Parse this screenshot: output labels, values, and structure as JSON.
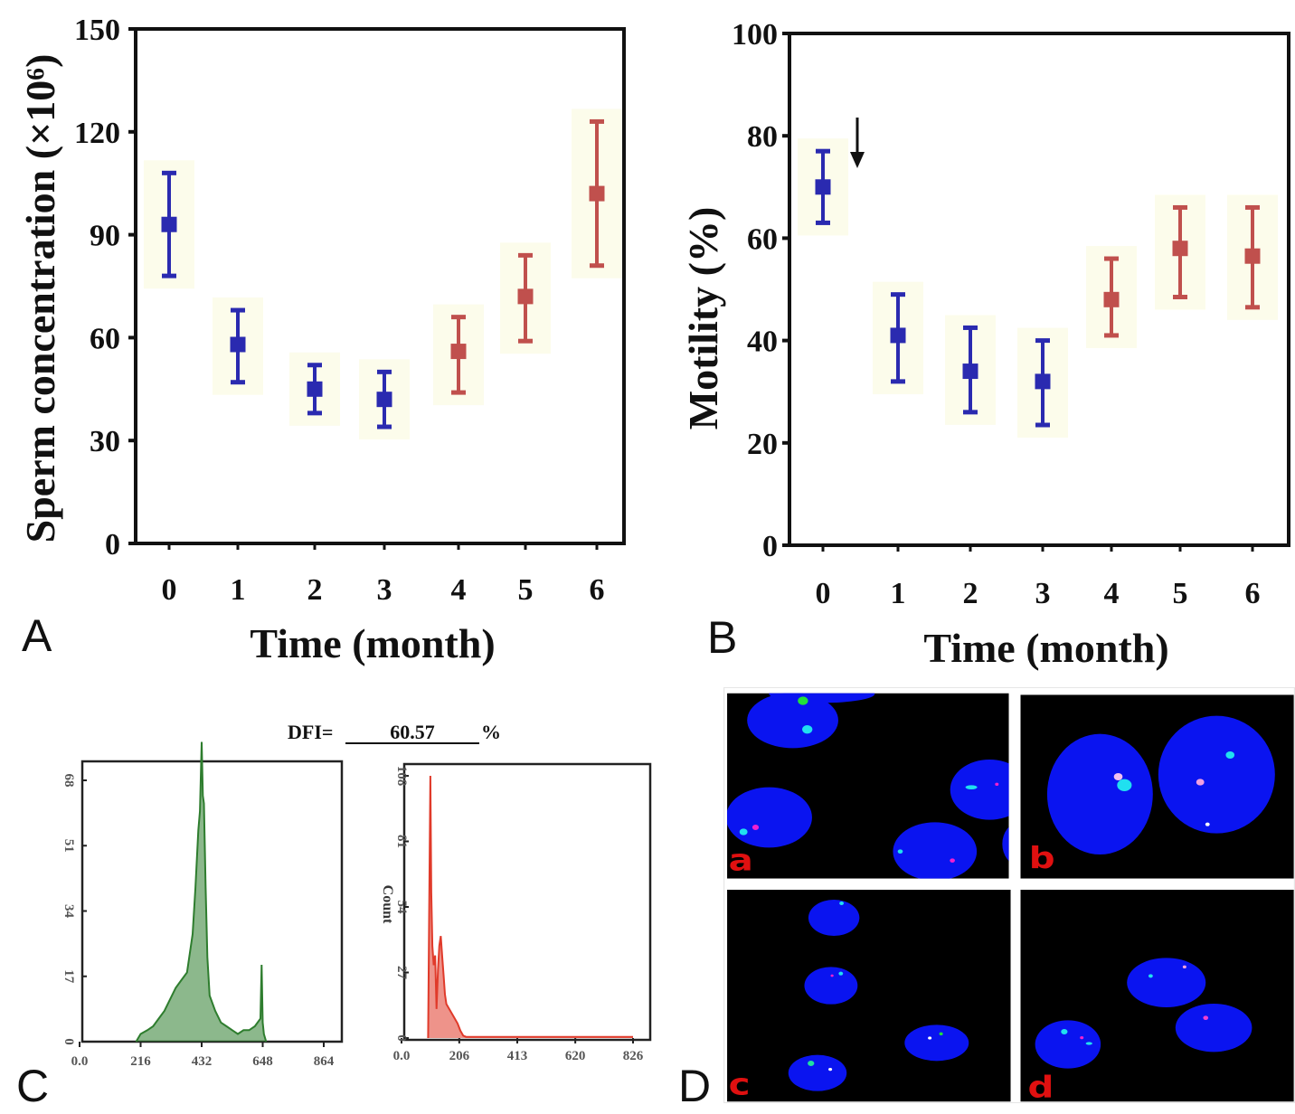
{
  "panel_labels": {
    "A": "A",
    "B": "B",
    "C": "C",
    "D": "D"
  },
  "chart_data": [
    {
      "id": "A",
      "type": "scatter",
      "error_bars": true,
      "xlabel": "Time (month)",
      "ylabel": "Sperm concentration (×10⁶)",
      "ylim": [
        0,
        150
      ],
      "yticks": [
        "0",
        "30",
        "60",
        "90",
        "120",
        "150"
      ],
      "categories": [
        "0",
        "1",
        "2",
        "3",
        "4",
        "5",
        "6"
      ],
      "values": [
        93,
        58,
        45,
        42,
        56,
        72,
        102
      ],
      "upper": [
        108,
        68,
        52,
        50,
        66,
        84,
        123
      ],
      "lower": [
        78,
        47,
        38,
        34,
        44,
        59,
        81
      ],
      "point_colors": [
        "#2a2ab0",
        "#2a2ab0",
        "#2a2ab0",
        "#2a2ab0",
        "#c0504d",
        "#c0504d",
        "#c0504d"
      ]
    },
    {
      "id": "B",
      "type": "scatter",
      "error_bars": true,
      "xlabel": "Time (month)",
      "ylabel": "Motility (%)",
      "ylim": [
        0,
        100
      ],
      "yticks": [
        "0",
        "20",
        "40",
        "60",
        "80",
        "100"
      ],
      "categories": [
        "0",
        "1",
        "2",
        "3",
        "4",
        "5",
        "6"
      ],
      "values": [
        70,
        41,
        34,
        32,
        48,
        58,
        56.5
      ],
      "upper": [
        77,
        49,
        42.5,
        40,
        56,
        66,
        66
      ],
      "lower": [
        63,
        32,
        26,
        23.5,
        41,
        48.5,
        46.5
      ],
      "point_colors": [
        "#2a2ab0",
        "#2a2ab0",
        "#2a2ab0",
        "#2a2ab0",
        "#c0504d",
        "#c0504d",
        "#c0504d"
      ],
      "annotation": "down-arrow after month 0"
    },
    {
      "id": "C-left",
      "type": "area",
      "title": "DFI=",
      "title_value": "60.57",
      "title_unit": "%",
      "xlim": [
        0,
        864
      ],
      "ylim": [
        0,
        75
      ],
      "xticks": [
        "0.0",
        "216",
        "432",
        "648",
        "864"
      ],
      "yticks": [
        "0",
        "17",
        "34",
        "51",
        "68"
      ],
      "color": "#2e7d2e",
      "x": [
        200,
        216,
        240,
        260,
        280,
        300,
        320,
        340,
        360,
        380,
        400,
        410,
        420,
        426,
        432,
        436,
        440,
        446,
        452,
        460,
        480,
        500,
        520,
        540,
        560,
        580,
        600,
        620,
        640,
        644,
        648,
        652,
        660
      ],
      "y": [
        0,
        2,
        3,
        4,
        6,
        8,
        11,
        14,
        16,
        18,
        28,
        40,
        55,
        60,
        78,
        64,
        62,
        40,
        22,
        12,
        8,
        5,
        4,
        3,
        2,
        3,
        3,
        4,
        6,
        20,
        5,
        2,
        0
      ]
    },
    {
      "id": "C-right",
      "type": "area",
      "ylabel": "Count",
      "xlim": [
        0,
        826
      ],
      "ylim": [
        0,
        115
      ],
      "xticks": [
        "0.0",
        "206",
        "413",
        "620",
        "826"
      ],
      "yticks": [
        "0",
        "27",
        "54",
        "81",
        "108"
      ],
      "color": "#e03a2a",
      "x": [
        95,
        100,
        103,
        106,
        110,
        115,
        120,
        125,
        130,
        135,
        140,
        145,
        150,
        155,
        160,
        170,
        180,
        190,
        200,
        210,
        220,
        230,
        260,
        400,
        600,
        826
      ],
      "y": [
        0,
        70,
        108,
        60,
        38,
        30,
        34,
        12,
        28,
        38,
        42,
        34,
        26,
        18,
        14,
        12,
        10,
        8,
        6,
        3,
        1,
        0.5,
        0.5,
        0.5,
        0.5,
        0.5
      ]
    }
  ],
  "panel_D": {
    "sublabels": [
      "a",
      "b",
      "c",
      "d"
    ],
    "background": "#000000",
    "cell_color": "#0a14f0",
    "label_color": "#e01010"
  }
}
